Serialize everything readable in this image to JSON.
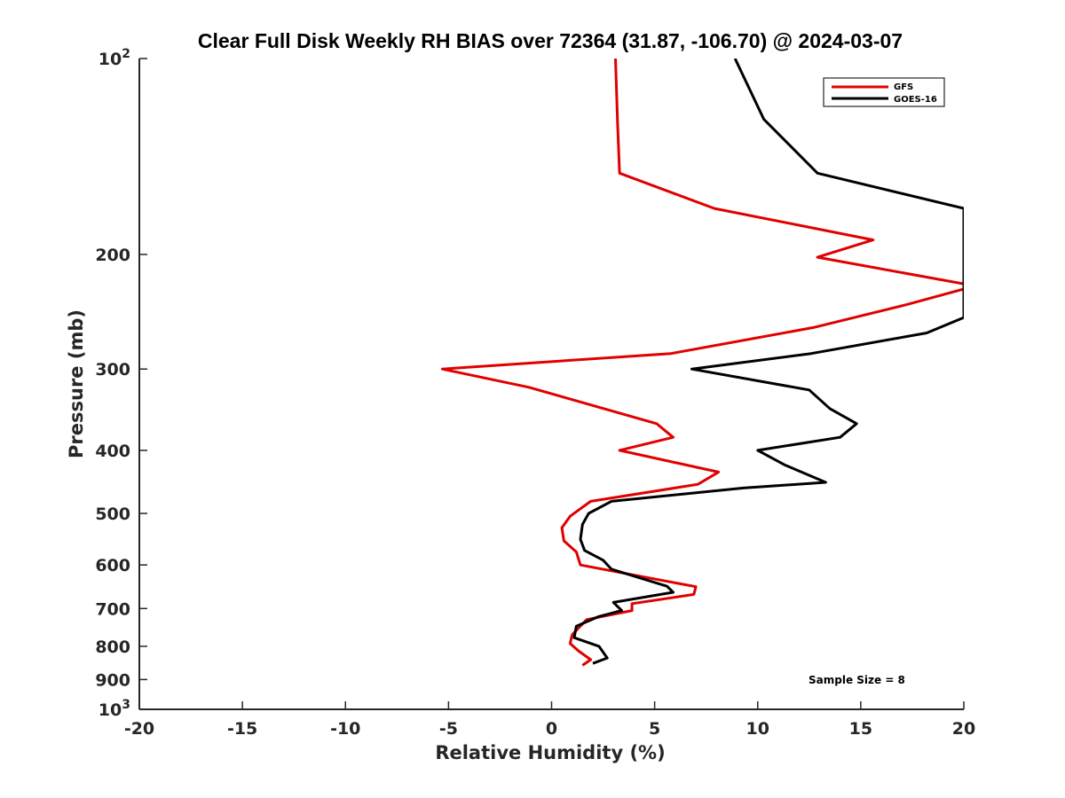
{
  "chart_data": {
    "type": "line",
    "title": "Clear Full Disk Weekly RH BIAS over 72364 (31.87, -106.70) @ 2024-03-07",
    "xlabel": "Relative Humidity (%)",
    "ylabel": "Pressure (mb)",
    "xlim": [
      -20,
      20
    ],
    "ylim": [
      100,
      1000
    ],
    "yscale": "log",
    "yreversed": true,
    "grid": false,
    "legend_position": "top-right",
    "x_ticks": [
      "-20",
      "-15",
      "-10",
      "-5",
      "0",
      "5",
      "10",
      "15",
      "20"
    ],
    "y_ticks": [
      {
        "value": 100,
        "base": "10",
        "exp": "2"
      },
      {
        "value": 200,
        "label": "200"
      },
      {
        "value": 300,
        "label": "300"
      },
      {
        "value": 400,
        "label": "400"
      },
      {
        "value": 500,
        "label": "500"
      },
      {
        "value": 600,
        "label": "600"
      },
      {
        "value": 700,
        "label": "700"
      },
      {
        "value": 800,
        "label": "800"
      },
      {
        "value": 900,
        "label": "900"
      },
      {
        "value": 1000,
        "base": "10",
        "exp": "3"
      }
    ],
    "annotation": "Sample Size = 8",
    "series": [
      {
        "name": "GFS",
        "color": "#e00000",
        "points": [
          [
            3.1,
            100
          ],
          [
            3.2,
            125
          ],
          [
            3.3,
            150
          ],
          [
            7.9,
            170
          ],
          [
            15.6,
            190
          ],
          [
            12.9,
            202
          ],
          [
            20.0,
            222
          ],
          [
            20.0,
            226
          ],
          [
            17.2,
            239
          ],
          [
            12.7,
            259
          ],
          [
            5.8,
            284
          ],
          [
            -5.3,
            300
          ],
          [
            -1.1,
            320
          ],
          [
            5.1,
            364
          ],
          [
            5.9,
            382
          ],
          [
            3.3,
            400
          ],
          [
            8.1,
            432
          ],
          [
            7.1,
            451
          ],
          [
            1.9,
            479
          ],
          [
            0.9,
            505
          ],
          [
            0.5,
            526
          ],
          [
            0.6,
            551
          ],
          [
            1.2,
            573
          ],
          [
            1.4,
            600
          ],
          [
            7.0,
            648
          ],
          [
            6.9,
            666
          ],
          [
            3.9,
            688
          ],
          [
            3.9,
            705
          ],
          [
            1.7,
            728
          ],
          [
            1.0,
            768
          ],
          [
            0.9,
            792
          ],
          [
            1.3,
            813
          ],
          [
            1.9,
            839
          ],
          [
            1.5,
            856
          ]
        ]
      },
      {
        "name": "GOES-16",
        "color": "#000000",
        "points": [
          [
            8.9,
            100
          ],
          [
            10.3,
            124
          ],
          [
            12.9,
            150
          ],
          [
            20.0,
            170
          ],
          [
            20.0,
            250
          ],
          [
            18.2,
            264
          ],
          [
            12.6,
            284
          ],
          [
            6.8,
            300
          ],
          [
            12.5,
            323
          ],
          [
            13.5,
            345
          ],
          [
            14.8,
            364
          ],
          [
            14.0,
            382
          ],
          [
            10.0,
            400
          ],
          [
            11.3,
            421
          ],
          [
            13.3,
            448
          ],
          [
            9.3,
            457
          ],
          [
            2.9,
            479
          ],
          [
            1.8,
            500
          ],
          [
            1.5,
            520
          ],
          [
            1.4,
            548
          ],
          [
            1.6,
            570
          ],
          [
            2.5,
            590
          ],
          [
            2.9,
            609
          ],
          [
            5.6,
            647
          ],
          [
            5.9,
            661
          ],
          [
            3.0,
            685
          ],
          [
            3.4,
            705
          ],
          [
            2.3,
            720
          ],
          [
            1.2,
            745
          ],
          [
            1.1,
            776
          ],
          [
            2.3,
            800
          ],
          [
            2.7,
            834
          ],
          [
            2.0,
            850
          ]
        ]
      }
    ]
  }
}
